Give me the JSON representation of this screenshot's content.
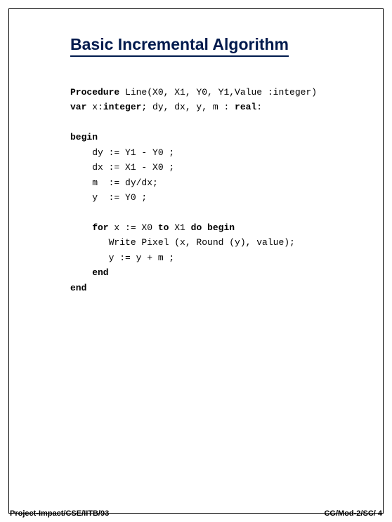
{
  "title": "Basic Incremental Algorithm",
  "code": {
    "l1a": "Procedure",
    "l1b": " Line(X0, X1, Y0, Y1,Value :integer)",
    "l2a": "var",
    "l2b": " x:",
    "l2c": "integer",
    "l2d": "; dy, dx, y, m : ",
    "l2e": "real",
    "l2f": ":",
    "l3": "begin",
    "l4": "    dy := Y1 - Y0 ;",
    "l5": "    dx := X1 - X0 ;",
    "l6": "    m  := dy/dx;",
    "l7": "    y  := Y0 ;",
    "l8a": "    for",
    "l8b": " x := X0 ",
    "l8c": "to",
    "l8d": " X1 ",
    "l8e": "do begin",
    "l9": "       Write Pixel (x, Round (y), value);",
    "l10": "       y := y + m ;",
    "l11": "    end",
    "l12": "end"
  },
  "footer": {
    "left": "Project-Impact/CSE/IITB/93",
    "right": "CG/Mod-2/SC/ 4"
  },
  "colors": {
    "title": "#001a4d",
    "text": "#000000",
    "background": "#ffffff",
    "border": "#000000"
  }
}
